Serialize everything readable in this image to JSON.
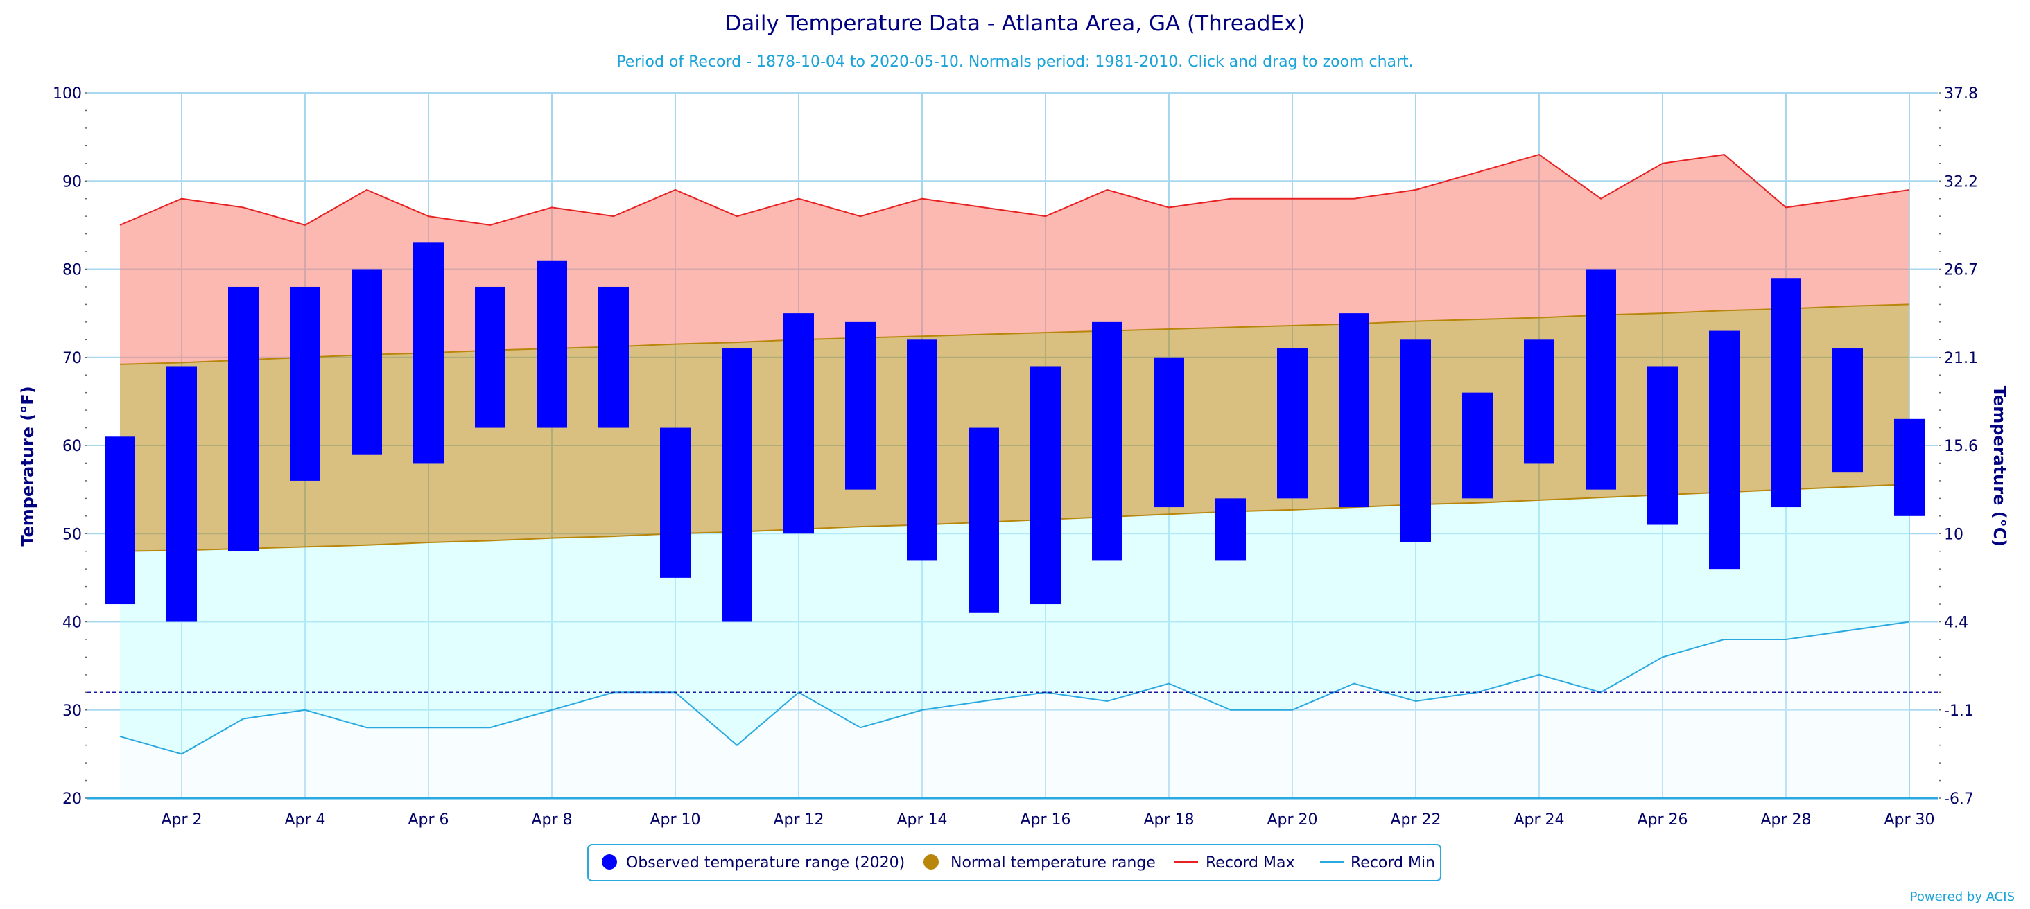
{
  "chart_data": {
    "type": "bar",
    "title": "Daily Temperature Data - Atlanta Area, GA (ThreadEx)",
    "subtitle": "Period of Record - 1878-10-04 to 2020-05-10. Normals period: 1981-2010. Click and drag to zoom chart.",
    "ylabel": "Temperature (°F)",
    "y2label": "Temperature (°C)",
    "ylim": [
      20,
      100
    ],
    "yticks": [
      20,
      30,
      40,
      50,
      60,
      70,
      80,
      90,
      100
    ],
    "y2ticks": [
      "-6.7",
      "-1.1",
      "4.4",
      "10",
      "15.6",
      "21.1",
      "26.7",
      "32.2",
      "37.8"
    ],
    "freezing_line_f": 32,
    "days": [
      1,
      2,
      3,
      4,
      5,
      6,
      7,
      8,
      9,
      10,
      11,
      12,
      13,
      14,
      15,
      16,
      17,
      18,
      19,
      20,
      21,
      22,
      23,
      24,
      25,
      26,
      27,
      28,
      29,
      30
    ],
    "xtick_labels": [
      "Apr 2",
      "Apr 4",
      "Apr 6",
      "Apr 8",
      "Apr 10",
      "Apr 12",
      "Apr 14",
      "Apr 16",
      "Apr 18",
      "Apr 20",
      "Apr 22",
      "Apr 24",
      "Apr 26",
      "Apr 28",
      "Apr 30"
    ],
    "series": [
      {
        "name": "Observed temperature range (2020)",
        "type": "columnrange",
        "color": "#0000ff",
        "low": [
          42,
          40,
          48,
          56,
          59,
          58,
          62,
          62,
          62,
          45,
          40,
          50,
          55,
          47,
          41,
          42,
          47,
          53,
          47,
          54,
          53,
          49,
          54,
          58,
          55,
          51,
          46,
          53,
          57,
          52
        ],
        "high": [
          61,
          69,
          78,
          78,
          80,
          83,
          78,
          81,
          78,
          62,
          71,
          75,
          74,
          72,
          62,
          69,
          74,
          70,
          54,
          71,
          75,
          72,
          66,
          72,
          80,
          69,
          73,
          79,
          71,
          63
        ]
      },
      {
        "name": "Normal temperature range",
        "type": "arearange",
        "color": "#b8860b",
        "low": [
          48,
          48.1,
          48.3,
          48.5,
          48.7,
          49,
          49.2,
          49.5,
          49.7,
          50,
          50.2,
          50.5,
          50.8,
          51,
          51.3,
          51.6,
          51.9,
          52.2,
          52.5,
          52.7,
          53,
          53.3,
          53.5,
          53.8,
          54.1,
          54.4,
          54.7,
          55,
          55.3,
          55.6
        ],
        "high": [
          69.2,
          69.4,
          69.7,
          70,
          70.3,
          70.5,
          70.8,
          71,
          71.2,
          71.5,
          71.7,
          72,
          72.2,
          72.4,
          72.6,
          72.8,
          73,
          73.2,
          73.4,
          73.6,
          73.8,
          74.1,
          74.3,
          74.5,
          74.8,
          75,
          75.3,
          75.5,
          75.8,
          76
        ]
      },
      {
        "name": "Record Max",
        "type": "line",
        "color": "#e82222",
        "values": [
          85,
          88,
          87,
          85,
          89,
          86,
          85,
          87,
          86,
          89,
          86,
          88,
          86,
          88,
          87,
          86,
          89,
          87,
          88,
          88,
          88,
          89,
          91,
          93,
          88,
          92,
          93,
          87,
          88,
          89
        ]
      },
      {
        "name": "Record Min",
        "type": "line",
        "color": "#2aa9e0",
        "values": [
          27,
          25,
          29,
          30,
          28,
          28,
          28,
          30,
          32,
          32,
          26,
          32,
          28,
          30,
          31,
          32,
          31,
          33,
          30,
          30,
          33,
          31,
          32,
          34,
          32,
          36,
          38,
          38,
          39,
          40
        ]
      }
    ],
    "legend_position": "bottom-center",
    "credits": "Powered by ACIS"
  }
}
